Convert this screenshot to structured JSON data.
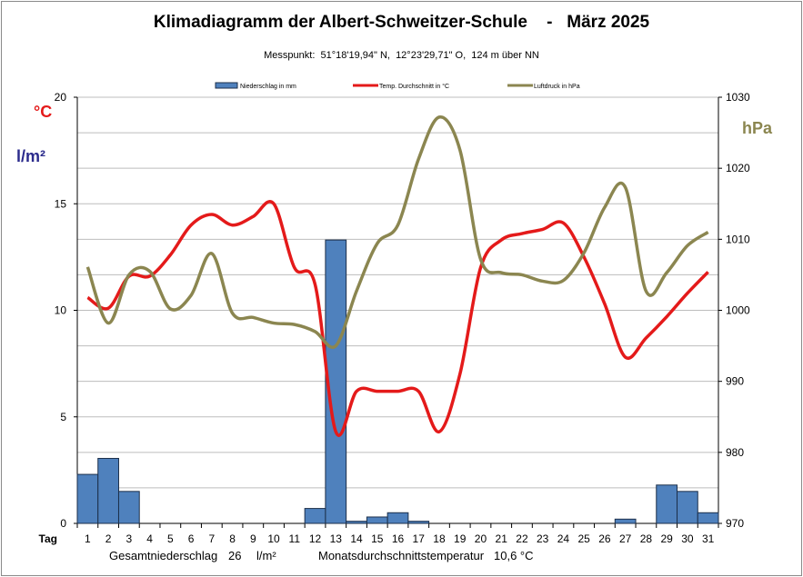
{
  "title": "Klimadiagramm der Albert-Schweitzer-Schule    -   März 2025",
  "subtitle": "Messpunkt:  51°18'19,94\" N,  12°23'29,71\" O,  124 m über NN",
  "unit_labels": {
    "celsius": "°C",
    "precip": "l/m²",
    "pressure": "hPa"
  },
  "footer": {
    "total_precip_label": "Gesamtniederschlag",
    "total_precip_value": "26",
    "total_precip_unit": "l/m²",
    "avg_temp_label": "Monatsdurchschnittstemperatur",
    "avg_temp_value": "10,6 °C"
  },
  "colors": {
    "bars": "#4f81bd",
    "temp": "#e41a1a",
    "pressure": "#8b8650"
  },
  "chart_data": {
    "type": "bar+line",
    "xlabel": "Tag",
    "categories": [
      "1",
      "2",
      "3",
      "4",
      "5",
      "6",
      "7",
      "8",
      "9",
      "10",
      "11",
      "12",
      "13",
      "14",
      "15",
      "16",
      "17",
      "18",
      "19",
      "20",
      "21",
      "22",
      "23",
      "24",
      "25",
      "26",
      "27",
      "28",
      "29",
      "30",
      "31"
    ],
    "left_axis": {
      "range": [
        0,
        20
      ],
      "ticks": [
        "0",
        "5",
        "10",
        "15",
        "20"
      ]
    },
    "right_axis": {
      "range": [
        970,
        1030
      ],
      "ticks": [
        "970",
        "980",
        "990",
        "1000",
        "1010",
        "1020",
        "1030"
      ]
    },
    "legend": [
      "Niederschlag in mm",
      "Temp. Durchschnitt in °C",
      "Luftdruck in hPa"
    ],
    "series": [
      {
        "name": "Niederschlag in mm",
        "type": "bar",
        "axis": "left",
        "values": [
          2.3,
          3.05,
          1.5,
          0,
          0,
          0,
          0,
          0,
          0,
          0,
          0,
          0.7,
          13.3,
          0.1,
          0.3,
          0.5,
          0.1,
          0,
          0,
          0,
          0,
          0,
          0,
          0,
          0,
          0,
          0.2,
          0,
          1.8,
          1.5,
          0.5
        ]
      },
      {
        "name": "Temp. Durchschnitt in °C",
        "type": "line",
        "axis": "left",
        "values": [
          10.6,
          10.1,
          11.6,
          11.6,
          12.6,
          14.0,
          14.5,
          14.0,
          14.4,
          15.0,
          12.0,
          11.2,
          4.3,
          6.2,
          6.2,
          6.2,
          6.2,
          4.3,
          7.0,
          12.0,
          13.3,
          13.6,
          13.8,
          14.1,
          12.5,
          10.3,
          7.8,
          8.7,
          9.7,
          10.8,
          11.8
        ]
      },
      {
        "name": "Luftdruck in hPa",
        "type": "line",
        "axis": "right",
        "values": [
          1006.1,
          998.2,
          1005,
          1005.5,
          1000.2,
          1002.1,
          1008,
          999.6,
          999,
          998.2,
          998,
          997,
          995,
          1002.7,
          1009.4,
          1012,
          1021.3,
          1027.2,
          1022.6,
          1007.2,
          1005.3,
          1005,
          1004.1,
          1004.2,
          1008.1,
          1014.5,
          1017.3,
          1002.7,
          1005.3,
          1009.1,
          1011
        ]
      }
    ]
  }
}
